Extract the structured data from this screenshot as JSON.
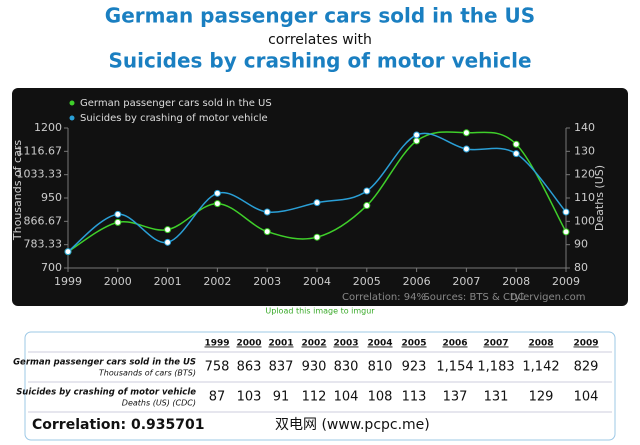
{
  "chart_data": {
    "type": "line",
    "title": "German passenger cars sold in the US",
    "subtitle": "correlates with",
    "title2": "Suicides by crashing of motor vehicle",
    "x": [
      1999,
      2000,
      2001,
      2002,
      2003,
      2004,
      2005,
      2006,
      2007,
      2008,
      2009
    ],
    "xlim": [
      1999,
      2009
    ],
    "series": [
      {
        "name": "German passenger cars sold in the US",
        "color": "#3fcf2a",
        "values": [
          758,
          863,
          837,
          930,
          830,
          810,
          923,
          1154,
          1183,
          1142,
          829
        ]
      },
      {
        "name": "Suicides by crashing of motor vehicle",
        "color": "#2a9fd6",
        "axis": "y2",
        "values": [
          87,
          103,
          91,
          112,
          104,
          108,
          113,
          137,
          131,
          129,
          104
        ]
      }
    ],
    "ylim": [
      700,
      1200
    ],
    "yticks": [
      700,
      783.33,
      866.67,
      950,
      1033.33,
      1116.67,
      1200
    ],
    "y2lim": [
      80,
      140
    ],
    "y2ticks": [
      80,
      90,
      100,
      110,
      120,
      130,
      140
    ],
    "ylabel": "Thousands of cars",
    "y2label": "Deaths (US)",
    "footer": [
      "Correlation: 94%",
      "Sources: BTS & CDC",
      "tylervigen.com"
    ],
    "upload": "Upload this image to imgur"
  },
  "table": {
    "header": [
      "1999",
      "2000",
      "2001",
      "2002",
      "2003",
      "2004",
      "2005",
      "2006",
      "2007",
      "2008",
      "2009"
    ],
    "rows": [
      {
        "label": "German passenger cars sold in the US",
        "sublabel": "Thousands of cars (BTS)",
        "values": [
          "758",
          "863",
          "837",
          "930",
          "830",
          "810",
          "923",
          "1,154",
          "1,183",
          "1,142",
          "829"
        ]
      },
      {
        "label": "Suicides by crashing of motor vehicle",
        "sublabel": "Deaths (US) (CDC)",
        "values": [
          "87",
          "103",
          "91",
          "112",
          "104",
          "108",
          "113",
          "137",
          "131",
          "129",
          "104"
        ]
      }
    ],
    "correlation": "Correlation: 0.935701"
  },
  "watermark": "双电网 (www.pcpc.me)"
}
